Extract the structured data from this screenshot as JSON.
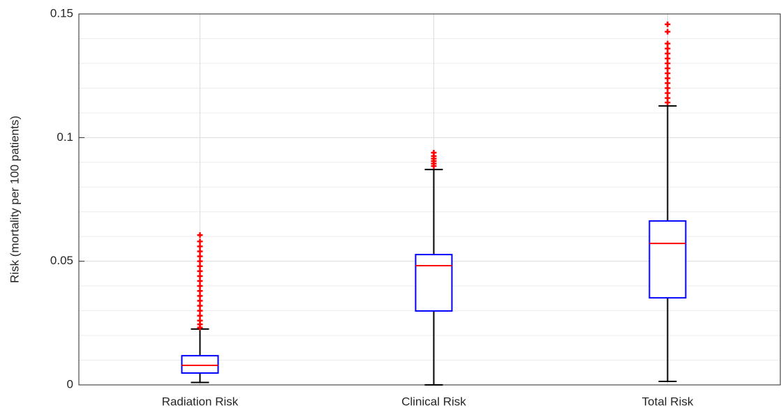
{
  "chart_data": {
    "type": "box",
    "ylabel": "Risk (mortality per 100 patients)",
    "categories": [
      "Radiation Risk",
      "Clinical Risk",
      "Total Risk"
    ],
    "boxes": [
      {
        "whislo": 0.001,
        "q1": 0.0048,
        "med": 0.0079,
        "q3": 0.0118,
        "whishi": 0.0226,
        "outliers": [
          0.0232,
          0.0245,
          0.026,
          0.028,
          0.03,
          0.032,
          0.034,
          0.036,
          0.038,
          0.04,
          0.042,
          0.044,
          0.046,
          0.048,
          0.05,
          0.052,
          0.054,
          0.056,
          0.058,
          0.0606
        ]
      },
      {
        "whislo": 0.0,
        "q1": 0.0299,
        "med": 0.0482,
        "q3": 0.0527,
        "whishi": 0.0871,
        "outliers": [
          0.0885,
          0.0895,
          0.0905,
          0.0915,
          0.0925,
          0.0939
        ]
      },
      {
        "whislo": 0.0014,
        "q1": 0.0352,
        "med": 0.0572,
        "q3": 0.0663,
        "whishi": 0.1128,
        "outliers": [
          0.1142,
          0.116,
          0.118,
          0.12,
          0.122,
          0.124,
          0.126,
          0.128,
          0.13,
          0.132,
          0.134,
          0.136,
          0.138,
          0.1428,
          0.1458
        ]
      }
    ],
    "box_color": "#0000ff",
    "median_color": "#ff0000",
    "whisker_color": "#000000",
    "outlier_color": "#ff0000",
    "ylim": [
      0,
      0.15
    ],
    "yticks": [
      0,
      0.05,
      0.1,
      0.15
    ],
    "yminorticks": [
      0.01,
      0.02,
      0.03,
      0.04,
      0.06,
      0.07,
      0.08,
      0.09,
      0.11,
      0.12,
      0.13,
      0.14
    ],
    "grid": true
  }
}
